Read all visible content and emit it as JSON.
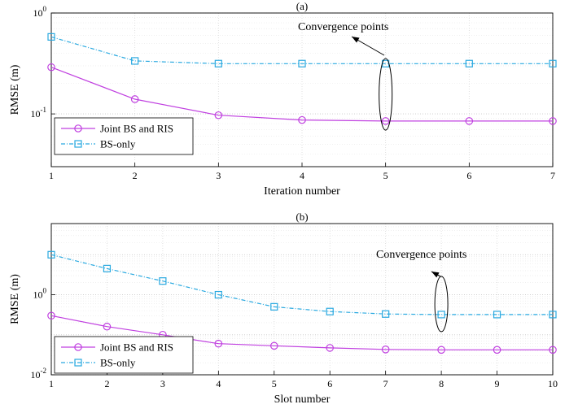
{
  "chart_data": [
    {
      "type": "line",
      "title": "(a)",
      "xlabel": "Iteration number",
      "ylabel": "RMSE (m)",
      "yscale": "log",
      "xlim": [
        1,
        7
      ],
      "ylim": [
        0.03,
        1
      ],
      "xticks": [
        1,
        2,
        3,
        4,
        5,
        6,
        7
      ],
      "yticks": [
        {
          "value": 0.1,
          "base": "10",
          "exp": "-1"
        },
        {
          "value": 1,
          "base": "10",
          "exp": "0"
        }
      ],
      "grid": true,
      "legend": "bottom-left",
      "x": [
        1,
        2,
        3,
        4,
        5,
        6,
        7
      ],
      "series": [
        {
          "name": "Joint BS and RIS",
          "color": "#c040e0",
          "marker": "circle",
          "dash": "solid",
          "values": [
            0.29,
            0.14,
            0.097,
            0.087,
            0.085,
            0.085,
            0.085
          ]
        },
        {
          "name": "BS-only",
          "color": "#2aa9e0",
          "marker": "square",
          "dash": "dashdot",
          "values": [
            0.58,
            0.335,
            0.315,
            0.315,
            0.315,
            0.315,
            0.315
          ]
        }
      ],
      "annotation": {
        "text": "Convergence points",
        "x": 5
      }
    },
    {
      "type": "line",
      "title": "(b)",
      "xlabel": "Slot number",
      "ylabel": "RMSE (m)",
      "yscale": "log",
      "xlim": [
        1,
        10
      ],
      "ylim": [
        0.01,
        60
      ],
      "xticks": [
        1,
        2,
        3,
        4,
        5,
        6,
        7,
        8,
        9,
        10
      ],
      "yticks": [
        {
          "value": 0.01,
          "base": "10",
          "exp": "-2"
        },
        {
          "value": 1,
          "base": "10",
          "exp": "0"
        }
      ],
      "grid": true,
      "legend": "bottom-left",
      "x": [
        1,
        2,
        3,
        4,
        5,
        6,
        7,
        8,
        9,
        10
      ],
      "series": [
        {
          "name": "Joint BS and RIS",
          "color": "#c040e0",
          "marker": "circle",
          "dash": "solid",
          "values": [
            0.3,
            0.16,
            0.1,
            0.06,
            0.053,
            0.047,
            0.043,
            0.042,
            0.042,
            0.042
          ]
        },
        {
          "name": "BS-only",
          "color": "#2aa9e0",
          "marker": "square",
          "dash": "dashdot",
          "values": [
            10,
            4.5,
            2.2,
            1.0,
            0.5,
            0.38,
            0.33,
            0.32,
            0.32,
            0.32
          ]
        }
      ],
      "annotation": {
        "text": "Convergence points",
        "x": 8
      }
    }
  ]
}
